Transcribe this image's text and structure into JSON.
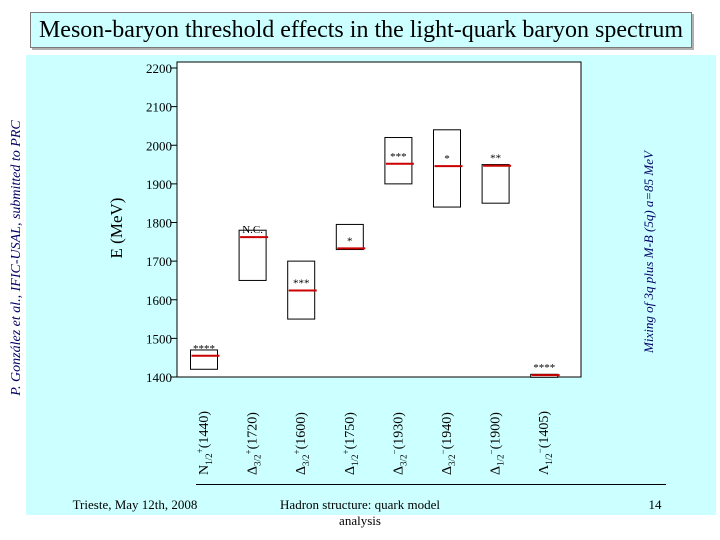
{
  "title": "Meson-baryon threshold effects in the light-quark baryon spectrum",
  "side_left": "P. González et al., IFIC-USAL, submitted to PRC",
  "side_right": "Mixing of 3q plus M-B (5q) a=85 MeV",
  "footer": {
    "left": "Trieste, May 12th, 2008",
    "middle": "Hadron structure: quark model analysis",
    "right": "14"
  },
  "colors": {
    "title_bg": "#ccffff",
    "panel_bg": "#ccffff",
    "level_line": "#cc0000"
  },
  "chart_data": {
    "type": "range-bar",
    "ylabel": "E (MeV)",
    "ylim": [
      1400,
      2200
    ],
    "yticks": [
      1400,
      1500,
      1600,
      1700,
      1800,
      1900,
      2000,
      2100,
      2200
    ],
    "states": [
      {
        "main": "N",
        "sub": "1/2",
        "sup": "+",
        "mass": "(1440)",
        "exp_min": 1420,
        "exp_max": 1470,
        "level": 1455,
        "rating": "****"
      },
      {
        "main": "Δ",
        "sub": "3/2",
        "sup": "+",
        "mass": "(1720)",
        "exp_min": 1650,
        "exp_max": 1780,
        "level": 1762,
        "rating": "N.C."
      },
      {
        "main": "Δ",
        "sub": "3/2",
        "sup": "+",
        "mass": "(1600)",
        "exp_min": 1550,
        "exp_max": 1700,
        "level": 1624,
        "rating": "***"
      },
      {
        "main": "Δ",
        "sub": "1/2",
        "sup": "+",
        "mass": "(1750)",
        "exp_min": 1730,
        "exp_max": 1795,
        "level": 1733,
        "rating": "*"
      },
      {
        "main": "Δ",
        "sub": "3/2",
        "sup": "−",
        "mass": "(1930)",
        "exp_min": 1900,
        "exp_max": 2020,
        "level": 1952,
        "rating": "***"
      },
      {
        "main": "Δ",
        "sub": "3/2",
        "sup": "−",
        "mass": "(1940)",
        "exp_min": 1840,
        "exp_max": 2040,
        "level": 1946,
        "rating": "*"
      },
      {
        "main": "Δ",
        "sub": "1/2",
        "sup": "−",
        "mass": "(1900)",
        "exp_min": 1850,
        "exp_max": 1950,
        "level": 1947,
        "rating": "**"
      },
      {
        "main": "Λ",
        "sub": "1/2",
        "sup": "−",
        "mass": "(1405)",
        "exp_min": 1405,
        "exp_max": 1407,
        "level": 1405,
        "rating": "****"
      }
    ]
  }
}
